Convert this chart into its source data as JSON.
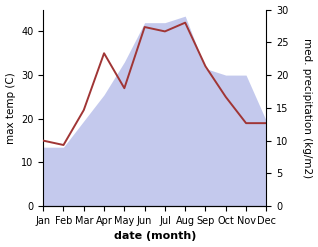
{
  "months": [
    "Jan",
    "Feb",
    "Mar",
    "Apr",
    "May",
    "Jun",
    "Jul",
    "Aug",
    "Sep",
    "Oct",
    "Nov",
    "Dec"
  ],
  "temperature": [
    15,
    14,
    22,
    35,
    27,
    41,
    40,
    42,
    32,
    25,
    19,
    19
  ],
  "precipitation": [
    9,
    9,
    13,
    17,
    22,
    28,
    28,
    29,
    21,
    20,
    20,
    13
  ],
  "temp_ylim": [
    0,
    45
  ],
  "precip_ylim": [
    0,
    30
  ],
  "temp_color": "#a03535",
  "precip_fill_color": "#b0b8e8",
  "precip_fill_alpha": 0.75,
  "ylabel_left": "max temp (C)",
  "ylabel_right": "med. precipitation (kg/m2)",
  "xlabel": "date (month)",
  "xlabel_fontsize": 8,
  "ylabel_fontsize": 7.5,
  "tick_fontsize": 7,
  "left_yticks": [
    0,
    10,
    20,
    30,
    40
  ],
  "right_yticks": [
    0,
    5,
    10,
    15,
    20,
    25,
    30
  ],
  "background_color": "#ffffff",
  "linewidth": 1.4
}
